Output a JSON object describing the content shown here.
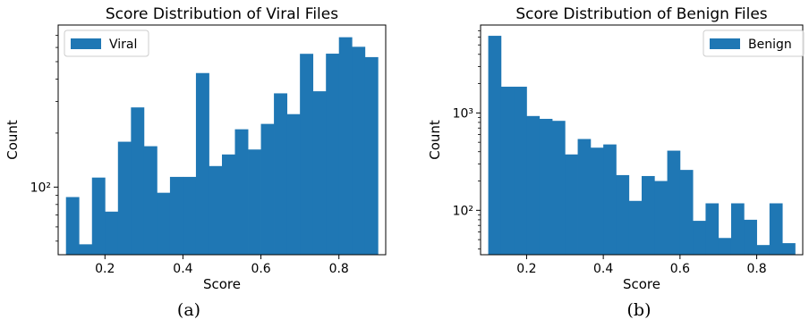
{
  "figure": {
    "captions": [
      "(a)",
      "(b)"
    ]
  },
  "chart_data": [
    {
      "type": "bar",
      "title": "Score Distribution of Viral Files",
      "xlabel": "Score",
      "ylabel": "Count",
      "yscale": "log",
      "bin_edges": [
        0.1,
        0.1333,
        0.1667,
        0.2,
        0.2333,
        0.2667,
        0.3,
        0.3333,
        0.3667,
        0.4,
        0.4333,
        0.4667,
        0.5,
        0.5333,
        0.5667,
        0.6,
        0.6333,
        0.6667,
        0.7,
        0.7333,
        0.7667,
        0.8,
        0.8333,
        0.8667,
        0.9
      ],
      "series": [
        {
          "name": "Viral",
          "color": "#1f77b4",
          "values": [
            88,
            48,
            113,
            73,
            179,
            278,
            169,
            93,
            114,
            114,
            432,
            131,
            152,
            210,
            162,
            225,
            333,
            255,
            553,
            342,
            554,
            684,
            605,
            530
          ]
        }
      ],
      "xlim": [
        0.08,
        0.92
      ],
      "ylim": [
        42,
        800
      ],
      "xticks": [
        0.2,
        0.4,
        0.6,
        0.8
      ],
      "xtick_labels": [
        "0.2",
        "0.4",
        "0.6",
        "0.8"
      ],
      "yticks_major": [
        100
      ],
      "ytick_labels": [
        "10²"
      ],
      "legend_position": "top-left",
      "grid": false
    },
    {
      "type": "bar",
      "title": "Score Distribution of Benign Files",
      "xlabel": "Score",
      "ylabel": "Count",
      "yscale": "log",
      "bin_edges": [
        0.1,
        0.1333,
        0.1667,
        0.2,
        0.2333,
        0.2667,
        0.3,
        0.3333,
        0.3667,
        0.4,
        0.4333,
        0.4667,
        0.5,
        0.5333,
        0.5667,
        0.6,
        0.6333,
        0.6667,
        0.7,
        0.7333,
        0.7667,
        0.8,
        0.8333,
        0.8667,
        0.9
      ],
      "series": [
        {
          "name": "Benign",
          "color": "#1f77b4",
          "values": [
            6200,
            1860,
            1860,
            930,
            870,
            830,
            375,
            540,
            440,
            475,
            230,
            125,
            225,
            200,
            410,
            260,
            78,
            118,
            52,
            118,
            80,
            44,
            118,
            46
          ]
        }
      ],
      "xlim": [
        0.08,
        0.92
      ],
      "ylim": [
        35,
        8000
      ],
      "xticks": [
        0.2,
        0.4,
        0.6,
        0.8
      ],
      "xtick_labels": [
        "0.2",
        "0.4",
        "0.6",
        "0.8"
      ],
      "yticks_major": [
        100,
        1000
      ],
      "ytick_labels": [
        "10²",
        "10³"
      ],
      "legend_position": "top-right",
      "grid": false
    }
  ]
}
